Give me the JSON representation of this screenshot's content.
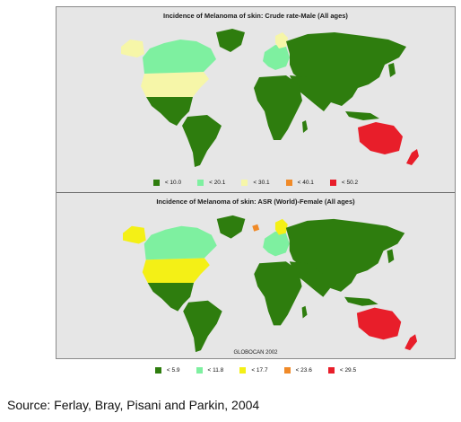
{
  "panels": [
    {
      "title": "Incidence of Melanoma of skin: Crude rate-Male (All ages)",
      "legend": [
        {
          "label": "< 10.0",
          "color": "#2e7d0e"
        },
        {
          "label": "< 20.1",
          "color": "#7ef0a0"
        },
        {
          "label": "< 30.1",
          "color": "#f6f6a8"
        },
        {
          "label": "< 40.1",
          "color": "#f08a28"
        },
        {
          "label": "< 50.2",
          "color": "#e81e2a"
        }
      ]
    },
    {
      "title": "Incidence of Melanoma of skin: ASR (World)-Female (All ages)",
      "legend": [
        {
          "label": "< 5.9",
          "color": "#2e7d0e"
        },
        {
          "label": "< 11.8",
          "color": "#7ef0a0"
        },
        {
          "label": "< 17.7",
          "color": "#f4f016"
        },
        {
          "label": "< 23.6",
          "color": "#f08a28"
        },
        {
          "label": "< 29.5",
          "color": "#e81e2a"
        }
      ],
      "credit": "GLOBOCAN 2002"
    }
  ],
  "source": "Source: Ferlay, Bray, Pisani and Parkin, 2004"
}
